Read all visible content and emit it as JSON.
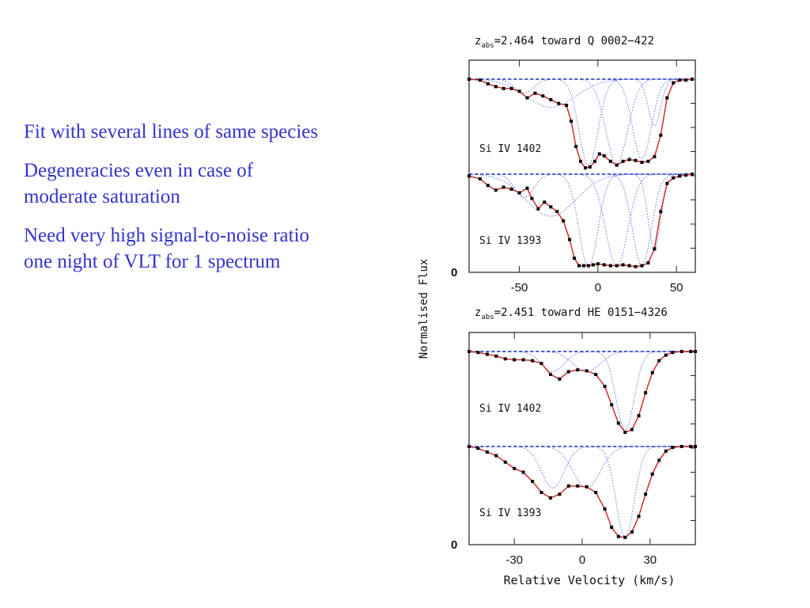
{
  "bullets": [
    {
      "lines": [
        "Fit with several lines of same species"
      ]
    },
    {
      "lines": [
        "Degeneracies even in case of",
        "moderate saturation"
      ]
    },
    {
      "lines": [
        "Need very high signal-to-noise ratio",
        "one night of VLT for 1 spectrum"
      ]
    }
  ],
  "colors": {
    "text": "#3333cc",
    "model": "#cc2222",
    "data": "#000000",
    "components": "#4455dd",
    "continuum": "#1122bb"
  },
  "chart_data": [
    {
      "type": "line",
      "title_prefix": "z",
      "title_sub": "abs",
      "title_rest": "=2.464 toward Q 0002−422",
      "xlim": [
        -82,
        62
      ],
      "ylim": [
        0,
        1
      ],
      "xticks": [
        -50,
        0,
        50
      ],
      "xtick_labels": [
        "-50",
        "0",
        "50"
      ],
      "y_zero_label": "0",
      "panels": [
        {
          "label": "Si IV 1402",
          "x": [
            -82,
            -75,
            -70,
            -65,
            -60,
            -55,
            -50,
            -45,
            -40,
            -35,
            -30,
            -25,
            -20,
            -17,
            -14,
            -11,
            -8,
            -5,
            -2,
            1,
            4,
            8,
            12,
            16,
            20,
            24,
            28,
            32,
            36,
            40,
            44,
            48,
            52,
            56,
            60
          ],
          "y": [
            1.0,
            0.99,
            0.95,
            0.92,
            0.9,
            0.9,
            0.87,
            0.8,
            0.85,
            0.82,
            0.78,
            0.74,
            0.72,
            0.55,
            0.28,
            0.12,
            0.05,
            0.06,
            0.12,
            0.2,
            0.18,
            0.12,
            0.08,
            0.12,
            0.14,
            0.13,
            0.11,
            0.12,
            0.17,
            0.4,
            0.8,
            0.96,
            0.99,
            0.99,
            1.0
          ],
          "components": [
            {
              "center": -47,
              "width": 6,
              "depth": 0.15
            },
            {
              "center": -30,
              "width": 16,
              "depth": 0.3
            },
            {
              "center": -6,
              "width": 6,
              "depth": 0.92
            },
            {
              "center": 12,
              "width": 7,
              "depth": 0.9
            },
            {
              "center": 28,
              "width": 6,
              "depth": 0.85
            },
            {
              "center": 36,
              "width": 4,
              "depth": 0.5
            }
          ]
        },
        {
          "label": "Si IV 1393",
          "x": [
            -82,
            -75,
            -70,
            -65,
            -60,
            -55,
            -50,
            -45,
            -42,
            -38,
            -34,
            -30,
            -26,
            -22,
            -18,
            -15,
            -12,
            -9,
            -6,
            -3,
            0,
            4,
            8,
            12,
            16,
            20,
            24,
            28,
            32,
            36,
            40,
            44,
            48,
            52,
            56,
            60
          ],
          "y": [
            0.98,
            0.95,
            0.88,
            0.83,
            0.86,
            0.84,
            0.8,
            0.85,
            0.74,
            0.63,
            0.7,
            0.65,
            0.6,
            0.5,
            0.3,
            0.1,
            0.02,
            0.02,
            0.02,
            0.03,
            0.04,
            0.03,
            0.02,
            0.02,
            0.03,
            0.02,
            0.01,
            0.02,
            0.05,
            0.2,
            0.6,
            0.9,
            0.96,
            0.98,
            0.99,
            1.0
          ],
          "components": [
            {
              "center": -47,
              "width": 6,
              "depth": 0.25
            },
            {
              "center": -30,
              "width": 16,
              "depth": 0.45
            },
            {
              "center": -6,
              "width": 6,
              "depth": 0.99
            },
            {
              "center": 12,
              "width": 7,
              "depth": 0.99
            },
            {
              "center": 28,
              "width": 6,
              "depth": 0.98
            },
            {
              "center": 36,
              "width": 4,
              "depth": 0.8
            }
          ]
        }
      ]
    },
    {
      "type": "line",
      "title_prefix": "z",
      "title_sub": "abs",
      "title_rest": "=2.451 toward HE 0151−4326",
      "xlim": [
        -50,
        50
      ],
      "ylim": [
        0,
        1
      ],
      "xticks": [
        -30,
        0,
        30
      ],
      "xtick_labels": [
        "-30",
        "0",
        "30"
      ],
      "y_zero_label": "0",
      "xlabel": "Relative Velocity (km/s)",
      "ylabel": "Normalised Flux",
      "panels": [
        {
          "label": "Si IV 1402",
          "x": [
            -50,
            -46,
            -42,
            -38,
            -34,
            -30,
            -26,
            -22,
            -18,
            -14,
            -10,
            -6,
            -2,
            2,
            6,
            10,
            13,
            16,
            19,
            22,
            25,
            28,
            31,
            34,
            37,
            40,
            44,
            48,
            50
          ],
          "y": [
            1.0,
            0.99,
            0.97,
            0.95,
            0.92,
            0.91,
            0.91,
            0.9,
            0.87,
            0.75,
            0.7,
            0.78,
            0.8,
            0.79,
            0.75,
            0.62,
            0.42,
            0.22,
            0.12,
            0.15,
            0.3,
            0.55,
            0.77,
            0.9,
            0.96,
            0.99,
            1.0,
            1.0,
            1.0
          ],
          "components": [
            {
              "center": -13,
              "width": 5,
              "depth": 0.22
            },
            {
              "center": 2,
              "width": 6,
              "depth": 0.22
            },
            {
              "center": 19,
              "width": 4,
              "depth": 0.85
            }
          ]
        },
        {
          "label": "Si IV 1393",
          "x": [
            -50,
            -46,
            -42,
            -38,
            -34,
            -30,
            -26,
            -22,
            -18,
            -14,
            -10,
            -6,
            -2,
            2,
            6,
            10,
            13,
            16,
            19,
            22,
            25,
            28,
            31,
            34,
            37,
            40,
            44,
            48,
            50
          ],
          "y": [
            1.0,
            0.98,
            0.94,
            0.9,
            0.83,
            0.76,
            0.72,
            0.62,
            0.5,
            0.44,
            0.48,
            0.57,
            0.57,
            0.56,
            0.5,
            0.32,
            0.12,
            0.02,
            0.01,
            0.07,
            0.24,
            0.48,
            0.7,
            0.85,
            0.95,
            0.99,
            1.0,
            1.0,
            1.0
          ],
          "components": [
            {
              "center": -13,
              "width": 5,
              "depth": 0.45
            },
            {
              "center": 2,
              "width": 6,
              "depth": 0.45
            },
            {
              "center": 19,
              "width": 4,
              "depth": 0.99
            }
          ]
        }
      ]
    }
  ]
}
